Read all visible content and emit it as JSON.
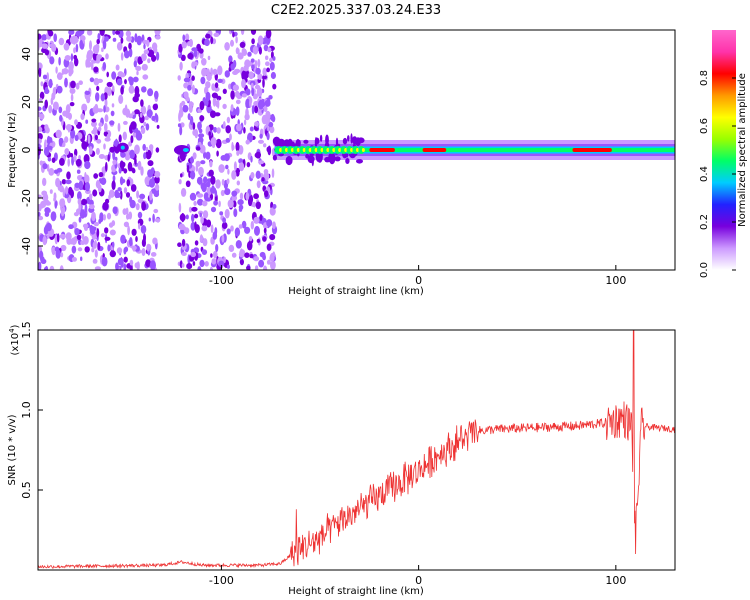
{
  "chart_data": [
    {
      "type": "heatmap",
      "title": "C2E2.2025.337.03.24.E33",
      "xlabel": "Height of straight line (km)",
      "ylabel": "Frequency (Hz)",
      "xlim": [
        -193,
        130
      ],
      "ylim": [
        -50,
        50
      ],
      "xticks": [
        -100,
        0,
        100
      ],
      "xtick_labels": [
        "-100",
        "0",
        "100"
      ],
      "yticks": [
        -40,
        -20,
        0,
        20,
        40
      ],
      "ytick_labels": [
        "-40",
        "-20",
        "0",
        "20",
        "40"
      ],
      "colorbar": {
        "label": "Normalized spectral amplitude",
        "range": [
          0.0,
          1.0
        ],
        "ticks": [
          0.0,
          0.2,
          0.4,
          0.6,
          0.8
        ],
        "tick_labels": [
          "0.0",
          "0.2",
          "0.4",
          "0.6",
          "0.8"
        ],
        "colors": [
          "#ffffff",
          "#cc99ff",
          "#7700dd",
          "#2222ff",
          "#00ccff",
          "#00ff66",
          "#99ff00",
          "#ffff00",
          "#ff9900",
          "#ff0000",
          "#ff33aa",
          "#ff66cc"
        ]
      },
      "noise_region_x": [
        -193,
        -73
      ],
      "noise_gap_x": [
        -132,
        -122
      ],
      "ridge": {
        "x_start": -73,
        "x_end": 130,
        "y": 0,
        "hot_segments_x": [
          [
            -25,
            -12
          ],
          [
            2,
            14
          ],
          [
            78,
            98
          ]
        ]
      },
      "color_scale": [
        "#cc99ff",
        "#9955ff",
        "#7700dd",
        "#00ccff",
        "#00ff66",
        "#ffff00",
        "#ff0000"
      ]
    },
    {
      "type": "line",
      "xlabel": "Height of straight line (km)",
      "ylabel": "SNR (10 * v/v)",
      "y_multiplier_label": "(x10",
      "y_multiplier_exp": "4",
      "y_multiplier_close": ")",
      "xlim": [
        -193,
        130
      ],
      "ylim": [
        0,
        1.5
      ],
      "xticks": [
        -100,
        0,
        100
      ],
      "xtick_labels": [
        "-100",
        "0",
        "100"
      ],
      "yticks": [
        0.5,
        1.0,
        1.5
      ],
      "ytick_labels": [
        "0.5",
        "1.0",
        "1.5"
      ],
      "color": "#ee3333",
      "series_envelope": {
        "x": [
          -193,
          -130,
          -120,
          -110,
          -80,
          -70,
          -62,
          -50,
          -40,
          -30,
          -20,
          -10,
          0,
          10,
          20,
          30,
          40,
          60,
          80,
          95,
          104,
          108,
          110,
          113,
          120,
          130
        ],
        "y": [
          0.02,
          0.03,
          0.05,
          0.03,
          0.03,
          0.04,
          0.12,
          0.2,
          0.3,
          0.38,
          0.46,
          0.54,
          0.62,
          0.72,
          0.8,
          0.87,
          0.88,
          0.89,
          0.9,
          0.92,
          0.95,
          0.9,
          0.2,
          0.9,
          0.89,
          0.88
        ]
      },
      "spikes": [
        {
          "x": 109,
          "y": 1.5
        },
        {
          "x": 110,
          "y": 0.1
        },
        {
          "x": -62,
          "y": 0.38
        }
      ]
    }
  ]
}
